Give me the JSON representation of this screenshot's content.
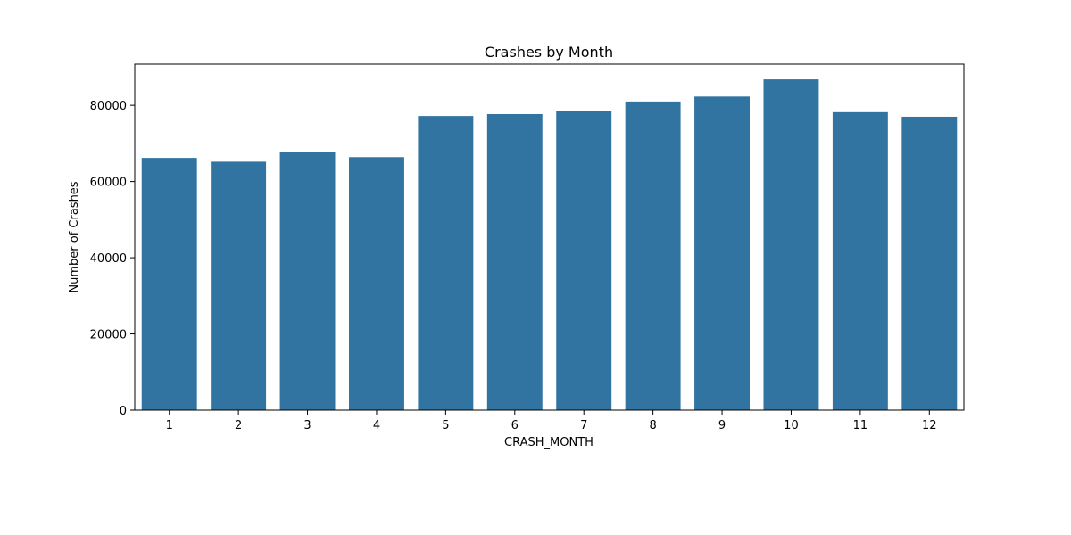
{
  "chart_data": {
    "type": "bar",
    "title": "Crashes by Month",
    "xlabel": "CRASH_MONTH",
    "ylabel": "Number of Crashes",
    "categories": [
      "1",
      "2",
      "3",
      "4",
      "5",
      "6",
      "7",
      "8",
      "9",
      "10",
      "11",
      "12"
    ],
    "values": [
      66200,
      65200,
      67800,
      66400,
      77200,
      77700,
      78600,
      81000,
      82300,
      86800,
      78200,
      77000
    ],
    "ylim": [
      0,
      90800
    ],
    "yticks": [
      0,
      20000,
      40000,
      60000,
      80000
    ],
    "ytick_labels": [
      "0",
      "20000",
      "40000",
      "60000",
      "80000"
    ],
    "grid": false,
    "bar_color": "#3274a1"
  }
}
